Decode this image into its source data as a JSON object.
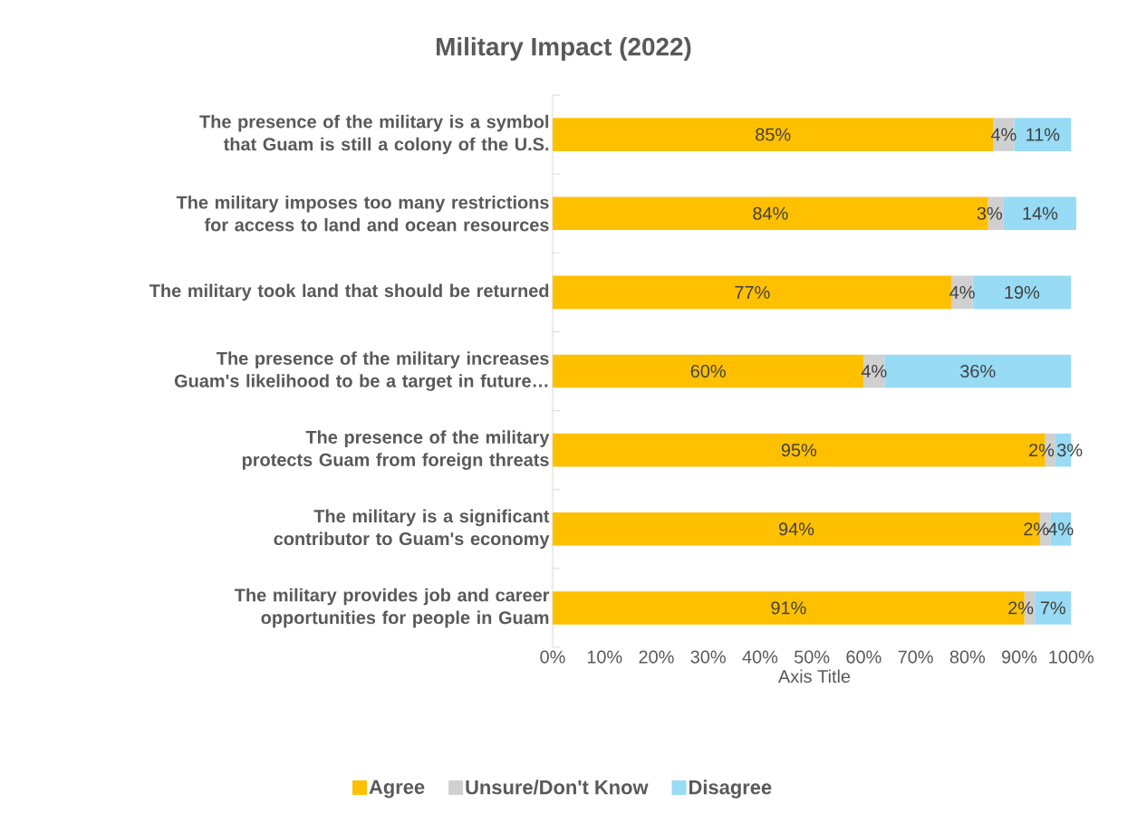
{
  "chart_data": {
    "type": "bar",
    "orientation": "horizontal",
    "stacked": true,
    "title": "Military Impact (2022)",
    "xlabel": "Axis Title",
    "categories": [
      "The presence of the military is a symbol that Guam is still a colony of the U.S.",
      "The military imposes too many restrictions for access to land and ocean resources",
      "The military took land that should be returned",
      "The presence of the military increases Guam's likelihood to be a target in future…",
      "The presence of the military protects Guam from foreign threats",
      "The military is a significant contributor to Guam's economy",
      "The military provides job and career opportunities for people in Guam"
    ],
    "series": [
      {
        "name": "Agree",
        "color": "#ffc000",
        "values": [
          85,
          84,
          77,
          60,
          95,
          94,
          91
        ],
        "value_labels": [
          "85%",
          "84%",
          "77%",
          "60%",
          "95%",
          "94%",
          "91%"
        ]
      },
      {
        "name": "Unsure/Don't Know",
        "color": "#d0d0d0",
        "values": [
          4,
          3,
          4,
          4,
          2,
          2,
          2
        ],
        "value_labels": [
          "4%",
          "3%",
          "4%",
          "4%",
          "2%",
          "2%",
          "2%"
        ]
      },
      {
        "name": "Disagree",
        "color": "#97dbf5",
        "values": [
          11,
          14,
          19,
          36,
          3,
          4,
          7
        ],
        "value_labels": [
          "11%",
          "14%",
          "19%",
          "36%",
          "3%",
          "4%",
          "7%"
        ]
      }
    ],
    "xlim": [
      0,
      101
    ],
    "xticks": [
      {
        "value": 0,
        "label": "0%"
      },
      {
        "value": 10,
        "label": "10%"
      },
      {
        "value": 20,
        "label": "20%"
      },
      {
        "value": 30,
        "label": "30%"
      },
      {
        "value": 40,
        "label": "40%"
      },
      {
        "value": 50,
        "label": "50%"
      },
      {
        "value": 60,
        "label": "60%"
      },
      {
        "value": 70,
        "label": "70%"
      },
      {
        "value": 80,
        "label": "80%"
      },
      {
        "value": 90,
        "label": "90%"
      },
      {
        "value": 100,
        "label": "100%"
      }
    ],
    "legend": "bottom"
  }
}
